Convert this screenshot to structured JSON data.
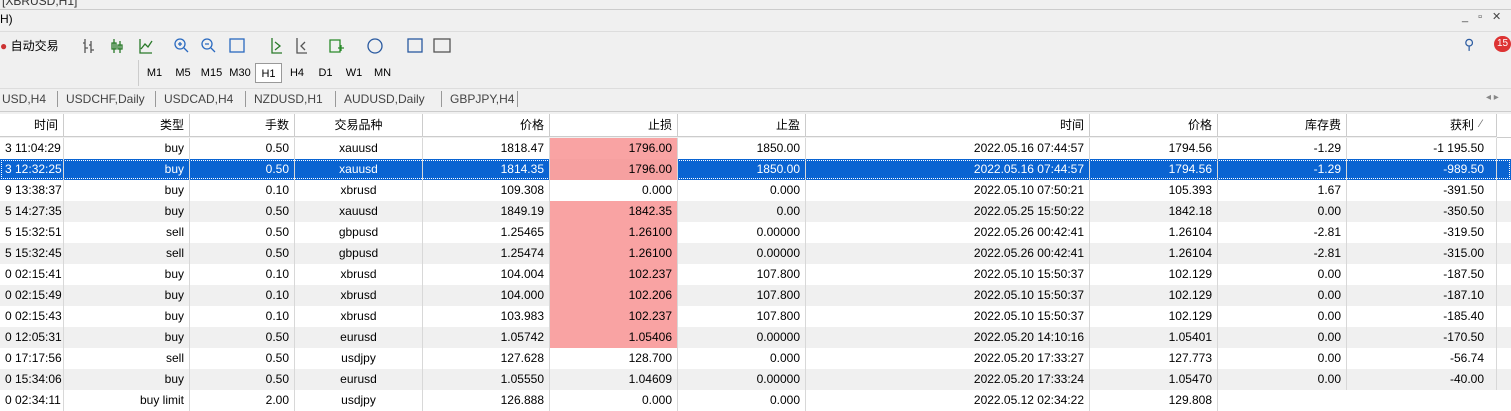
{
  "window": {
    "title": "[XBRUSD,H1]",
    "menu": "H)"
  },
  "toolbar": {
    "auto_trade": "自动交易",
    "notifications": "15"
  },
  "timeframes": {
    "items": [
      "M1",
      "M5",
      "M15",
      "M30",
      "H1",
      "H4",
      "D1",
      "W1",
      "MN"
    ],
    "active": 4
  },
  "tabs": [
    "USD,H4",
    "USDCHF,Daily",
    "USDCAD,H4",
    "NZDUSD,H1",
    "AUDUSD,Daily",
    "GBPJPY,H4"
  ],
  "table": {
    "columns": [
      "时间",
      "类型",
      "手数",
      "交易品种",
      "价格",
      "止损",
      "止盈",
      "时间",
      "价格",
      "库存费",
      "获利"
    ],
    "sort_mark": "⁄",
    "selected_row": 1,
    "stop_highlight": [
      true,
      true,
      false,
      true,
      true,
      true,
      true,
      true,
      true,
      true,
      false,
      false,
      false
    ],
    "rows": [
      [
        "3 11:04:29",
        "buy",
        "0.50",
        "xauusd",
        "1818.47",
        "1796.00",
        "1850.00",
        "2022.05.16 07:44:57",
        "1794.56",
        "-1.29",
        "-1 195.50"
      ],
      [
        "3 12:32:25",
        "buy",
        "0.50",
        "xauusd",
        "1814.35",
        "1796.00",
        "1850.00",
        "2022.05.16 07:44:57",
        "1794.56",
        "-1.29",
        "-989.50"
      ],
      [
        "9 13:38:37",
        "buy",
        "0.10",
        "xbrusd",
        "109.308",
        "0.000",
        "0.000",
        "2022.05.10 07:50:21",
        "105.393",
        "1.67",
        "-391.50"
      ],
      [
        "5 14:27:35",
        "buy",
        "0.50",
        "xauusd",
        "1849.19",
        "1842.35",
        "0.00",
        "2022.05.25 15:50:22",
        "1842.18",
        "0.00",
        "-350.50"
      ],
      [
        "5 15:32:51",
        "sell",
        "0.50",
        "gbpusd",
        "1.25465",
        "1.26100",
        "0.00000",
        "2022.05.26 00:42:41",
        "1.26104",
        "-2.81",
        "-319.50"
      ],
      [
        "5 15:32:45",
        "sell",
        "0.50",
        "gbpusd",
        "1.25474",
        "1.26100",
        "0.00000",
        "2022.05.26 00:42:41",
        "1.26104",
        "-2.81",
        "-315.00"
      ],
      [
        "0 02:15:41",
        "buy",
        "0.10",
        "xbrusd",
        "104.004",
        "102.237",
        "107.800",
        "2022.05.10 15:50:37",
        "102.129",
        "0.00",
        "-187.50"
      ],
      [
        "0 02:15:49",
        "buy",
        "0.10",
        "xbrusd",
        "104.000",
        "102.206",
        "107.800",
        "2022.05.10 15:50:37",
        "102.129",
        "0.00",
        "-187.10"
      ],
      [
        "0 02:15:43",
        "buy",
        "0.10",
        "xbrusd",
        "103.983",
        "102.237",
        "107.800",
        "2022.05.10 15:50:37",
        "102.129",
        "0.00",
        "-185.40"
      ],
      [
        "0 12:05:31",
        "buy",
        "0.50",
        "eurusd",
        "1.05742",
        "1.05406",
        "0.00000",
        "2022.05.20 14:10:16",
        "1.05401",
        "0.00",
        "-170.50"
      ],
      [
        "0 17:17:56",
        "sell",
        "0.50",
        "usdjpy",
        "127.628",
        "128.700",
        "0.000",
        "2022.05.20 17:33:27",
        "127.773",
        "0.00",
        "-56.74"
      ],
      [
        "0 15:34:06",
        "buy",
        "0.50",
        "eurusd",
        "1.05550",
        "1.04609",
        "0.00000",
        "2022.05.20 17:33:24",
        "1.05470",
        "0.00",
        "-40.00"
      ],
      [
        "0 02:34:11",
        "buy limit",
        "2.00",
        "usdjpy",
        "126.888",
        "0.000",
        "0.000",
        "2022.05.12 02:34:22",
        "129.808",
        null,
        null
      ]
    ]
  }
}
